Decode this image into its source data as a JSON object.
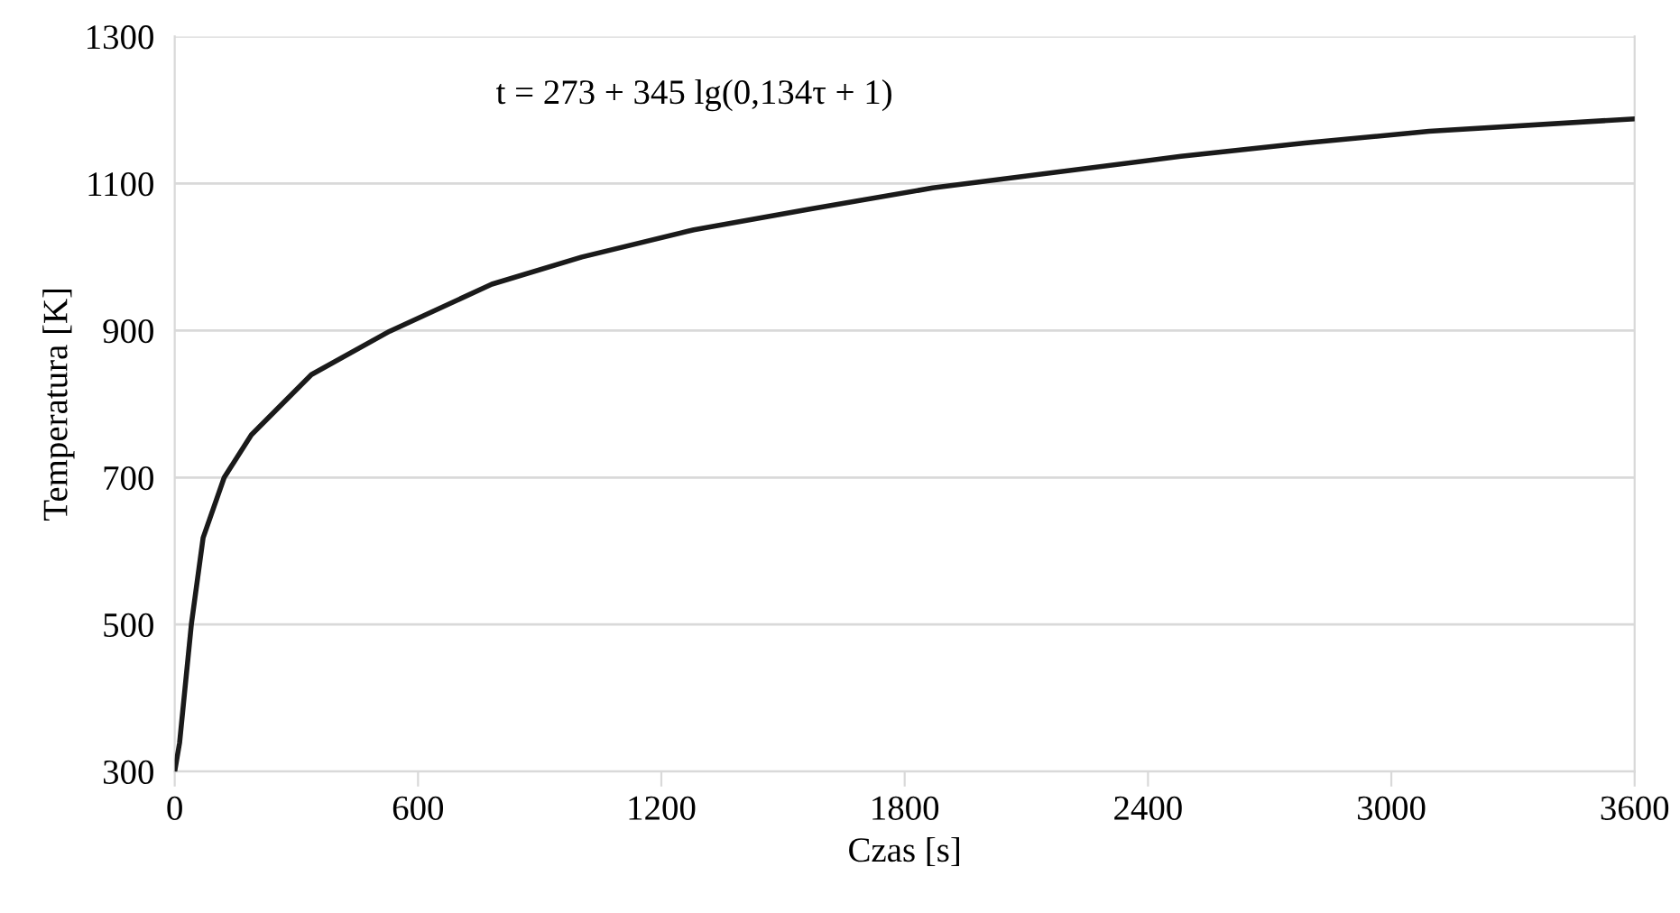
{
  "chart_data": {
    "type": "line",
    "xlabel": "Czas [s]",
    "ylabel": "Temperatura [K]",
    "annotations": [
      "t = 273 + 345 lg(0,134τ + 1)"
    ],
    "series": [
      {
        "color": "#1a1a1a",
        "x": [
          0,
          12,
          41,
          70,
          122,
          189,
          337,
          530,
          782,
          1004,
          1280,
          1563,
          1869,
          2481,
          2787,
          3093,
          3600
        ],
        "values": [
          300,
          339,
          500,
          618,
          700,
          758,
          840,
          899,
          963,
          1000,
          1037,
          1065,
          1094,
          1137,
          1155,
          1171,
          1188
        ]
      }
    ],
    "xlim": [
      0,
      3600
    ],
    "xticks": [
      0,
      600,
      1200,
      1800,
      2400,
      3000,
      3600
    ],
    "ylim": [
      300,
      1300
    ],
    "yticks": [
      300,
      500,
      700,
      900,
      1100,
      1300
    ],
    "grid": "y",
    "marker": "none",
    "line_style": "solid"
  }
}
